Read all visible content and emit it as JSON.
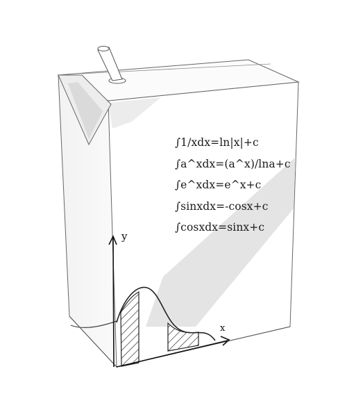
{
  "formulas": [
    "∫1/xdx=ln|x|+c",
    "∫a^xdx=(a^x)/lna+c",
    "∫e^xdx=e^x+c",
    "∫sinxdx=-cosx+c",
    "∫cosxdx=sinx+c"
  ],
  "graph": {
    "y_label": "y",
    "x_label": "x"
  },
  "colors": {
    "outline": "#555555",
    "shadow_band": "#e6e6e6",
    "curve": "#222222",
    "hatch": "#333333"
  }
}
